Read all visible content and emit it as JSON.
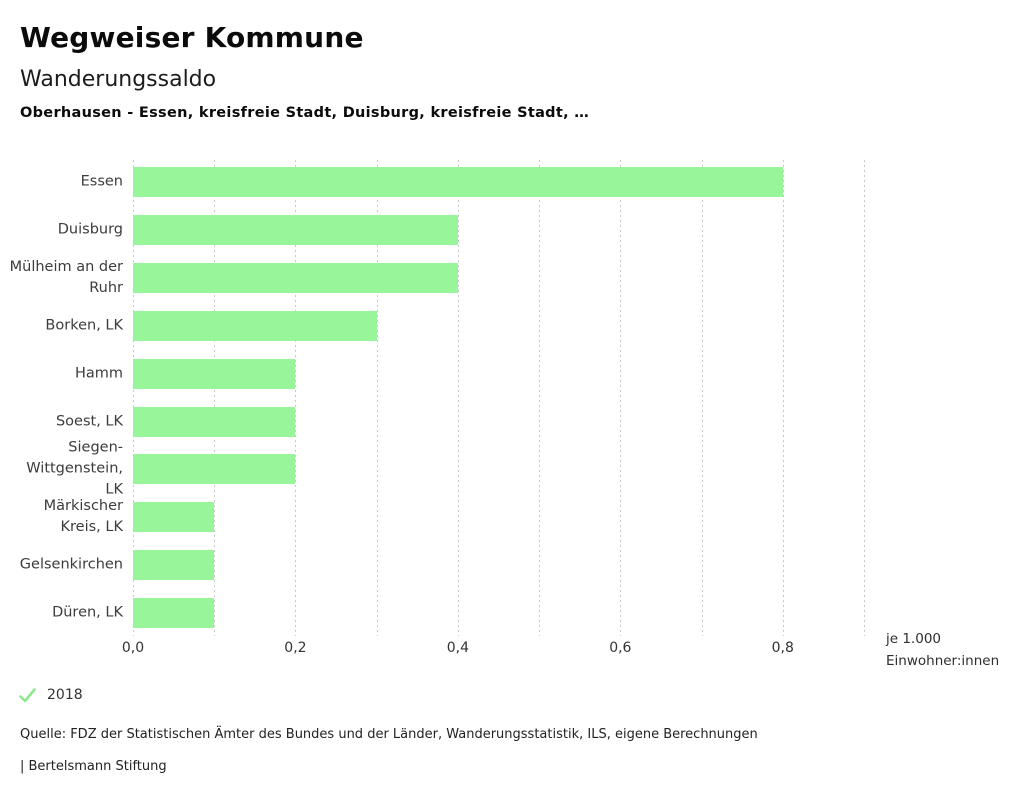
{
  "header": {
    "title": "Wegweiser Kommune",
    "subtitle": "Wanderungssaldo",
    "selection": "Oberhausen - Essen, kreisfreie Stadt, Duisburg, kreisfreie Stadt, …"
  },
  "chart_data": {
    "type": "bar",
    "orientation": "horizontal",
    "title": "Wanderungssaldo",
    "categories": [
      "Essen",
      "Duisburg",
      "Mülheim an der Ruhr",
      "Borken, LK",
      "Hamm",
      "Soest, LK",
      "Siegen-Wittgenstein, LK",
      "Märkischer Kreis, LK",
      "Gelsenkirchen",
      "Düren, LK"
    ],
    "category_label_lines": [
      [
        "Essen"
      ],
      [
        "Duisburg"
      ],
      [
        "Mülheim an der",
        "Ruhr"
      ],
      [
        "Borken, LK"
      ],
      [
        "Hamm"
      ],
      [
        "Soest, LK"
      ],
      [
        "Siegen-",
        "Wittgenstein,",
        "LK"
      ],
      [
        "Märkischer",
        "Kreis, LK"
      ],
      [
        "Gelsenkirchen"
      ],
      [
        "Düren, LK"
      ]
    ],
    "series": [
      {
        "name": "2018",
        "values": [
          0.8,
          0.4,
          0.4,
          0.3,
          0.2,
          0.2,
          0.2,
          0.1,
          0.1,
          0.1
        ]
      }
    ],
    "xlabel": "je 1.000 Einwohner:innen",
    "unit_label_lines": [
      "je 1.000",
      "Einwohner:innen"
    ],
    "xlim": [
      0,
      0.9
    ],
    "grid_step": 0.1,
    "grid_on": true,
    "x_ticks": [
      {
        "v": 0.0,
        "label": "0,0"
      },
      {
        "v": 0.2,
        "label": "0,2"
      },
      {
        "v": 0.4,
        "label": "0,4"
      },
      {
        "v": 0.6,
        "label": "0,6"
      },
      {
        "v": 0.8,
        "label": "0,8"
      }
    ],
    "legend_position": "bottom-left",
    "colors": {
      "bar": "#99F599",
      "grid": "#c9c9c9",
      "check": "#8DE98D"
    }
  },
  "legend": {
    "year": "2018"
  },
  "footer": {
    "source": "Quelle: FDZ der Statistischen Ämter des Bundes und der Länder, Wanderungsstatistik, ILS, eigene Berechnungen",
    "brand": "| Bertelsmann Stiftung"
  }
}
